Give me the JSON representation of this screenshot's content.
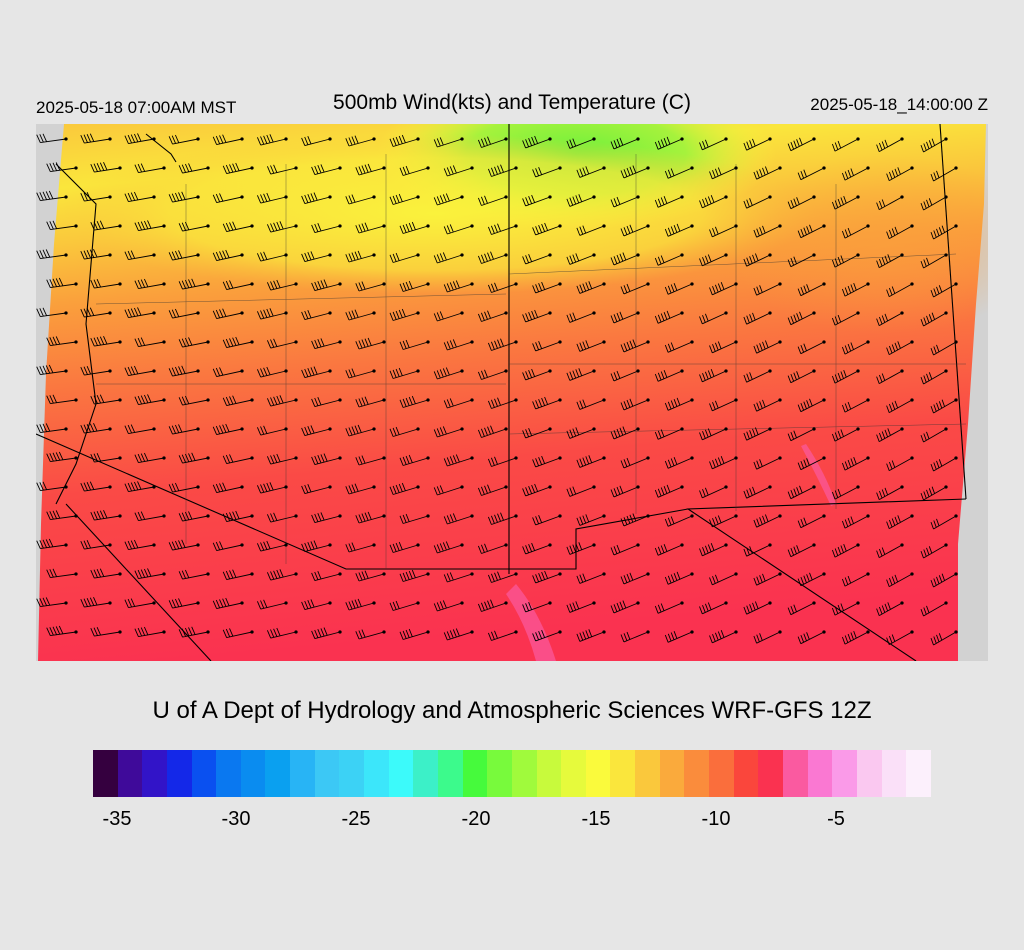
{
  "header": {
    "local_time": "2025-05-18 07:00AM MST",
    "title": "500mb Wind(kts) and Temperature (C)",
    "utc_time": "2025-05-18_14:00:00 Z"
  },
  "credit": "U of A Dept of Hydrology and Atmospheric Sciences WRF-GFS 12Z",
  "legend": {
    "colors": [
      "#35003f",
      "#3f0a9a",
      "#3214c8",
      "#1428e8",
      "#0a50f0",
      "#0a78f0",
      "#0a8cf0",
      "#0aa0f0",
      "#28b4f5",
      "#3cc8f5",
      "#3cd2f5",
      "#3ce6fa",
      "#3cfafa",
      "#3cf0c8",
      "#3cfa8c",
      "#46fa3c",
      "#78fa3c",
      "#a0fa3c",
      "#c8fa3c",
      "#e6fa3c",
      "#fafa3c",
      "#fae63c",
      "#fac83c",
      "#faaa3c",
      "#fa8c3c",
      "#fa6e3c",
      "#fa463c",
      "#fa3250",
      "#fa5aa0",
      "#fa78d2",
      "#fa9ae8",
      "#fac8f0",
      "#fae0f8",
      "#fcf0fc"
    ],
    "tick_labels": [
      "-35",
      "-30",
      "-25",
      "-20",
      "-15",
      "-10",
      "-5"
    ]
  },
  "map": {
    "field": "500mb temperature (C) shaded with wind barbs (kts)",
    "palette": {
      "green": "#78fa3c",
      "yellow": "#fafa3c",
      "light_orange": "#fac83c",
      "orange": "#faa03c",
      "dark_orange": "#fa7840",
      "red": "#fa4646",
      "crimson": "#fa3250",
      "pink": "#fa5aa0",
      "border": "#000000",
      "outside": "#d2d2d2"
    }
  }
}
